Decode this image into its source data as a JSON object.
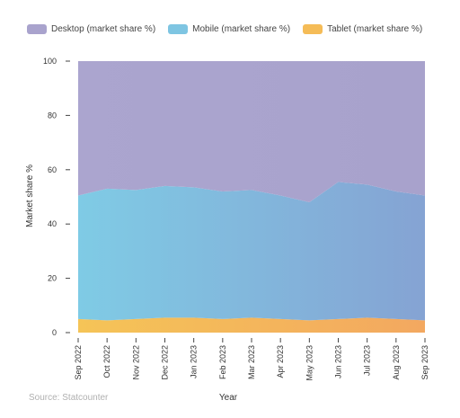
{
  "chart_data": {
    "type": "area",
    "stacked": true,
    "categories": [
      "Sep 2022",
      "Oct 2022",
      "Nov 2022",
      "Dec 2022",
      "Jan 2023",
      "Feb 2023",
      "Mar 2023",
      "Apr 2023",
      "May 2023",
      "Jun 2023",
      "Jul 2023",
      "Aug 2023",
      "Sep 2023"
    ],
    "series": [
      {
        "name": "Desktop (market share %)",
        "color": "#a9a3cd",
        "values": [
          49.5,
          47,
          47.5,
          46,
          46.5,
          48,
          47.5,
          49.5,
          52,
          44.5,
          45.5,
          48,
          49.5
        ]
      },
      {
        "name": "Mobile (market share %)",
        "color": "#7ec5e2",
        "values": [
          45.5,
          48.5,
          47.5,
          48.5,
          48,
          47,
          47,
          45.5,
          43.5,
          50.5,
          49,
          47,
          46
        ]
      },
      {
        "name": "Tablet (market share %)",
        "color": "#f5bc57",
        "values": [
          5,
          4.5,
          5,
          5.5,
          5.5,
          5,
          5.5,
          5,
          4.5,
          5,
          5.5,
          5,
          4.5
        ]
      }
    ],
    "xlabel": "Year",
    "ylabel": "Market share %",
    "ylim": [
      0,
      100
    ],
    "yticks": [
      0,
      20,
      40,
      60,
      80,
      100
    ],
    "grid": false,
    "legend": "top-left"
  },
  "source": "Source: Statcounter"
}
